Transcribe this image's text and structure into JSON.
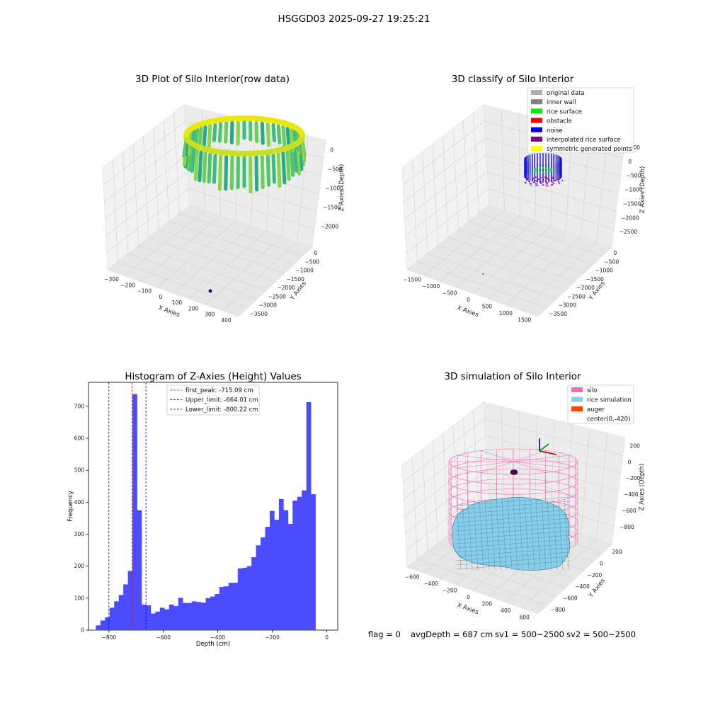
{
  "suptitle": "HSGGD03 2025-09-27 19:25:21",
  "footer": {
    "flag": "flag = 0",
    "avg": "avgDepth = 687 cm",
    "sv1": "sv1 = 500~2500",
    "sv2": "sv2 = 500~2500"
  },
  "colors": {
    "hist_bar": "#4b4bff",
    "first_peak": "#ff0000",
    "limits": "#0000cc",
    "silo": "#ff69b4",
    "rice": "#87ceeb",
    "auger": "#ff4500",
    "pane": "#f2f2f2",
    "grid": "#d0d0d0"
  },
  "panels": {
    "raw": {
      "title": "3D Plot of Silo Interior(row data)",
      "xlabel": "X Axies",
      "ylabel": "Y Axies",
      "zlabel": "Z Axies (Depth)",
      "xticks": [
        "−300",
        "−200",
        "−100",
        "0",
        "100",
        "200",
        "300",
        "400"
      ],
      "yticks": [
        "0",
        "−500",
        "−1000",
        "−1500",
        "−2000",
        "−2500",
        "−3000",
        "−3500"
      ],
      "zticks": [
        "0",
        "−500",
        "−1000",
        "−1500",
        "−2000"
      ]
    },
    "classify": {
      "title": "3D classify of Silo Interior",
      "xlabel": "X Axies",
      "ylabel": "Y Axies",
      "zlabel": "Z Axies (Depth)",
      "xticks": [
        "−1500",
        "−1000",
        "−500",
        "0",
        "500",
        "1000",
        "1500"
      ],
      "yticks": [
        "0",
        "−500",
        "−1000",
        "−1500",
        "−2000",
        "−2500",
        "−3000",
        "−3500"
      ],
      "zticks": [
        "500",
        "0",
        "−500",
        "−1000",
        "−1500",
        "−2000",
        "−2500"
      ],
      "legend": [
        {
          "label": "original data",
          "color": "#b0b0b0"
        },
        {
          "label": "inner wall",
          "color": "#808080"
        },
        {
          "label": "rice surface",
          "color": "#00ee00"
        },
        {
          "label": "obstacle",
          "color": "#ff0000"
        },
        {
          "label": "noise",
          "color": "#0000dd"
        },
        {
          "label": "interpolated rice surface",
          "color": "#800080"
        },
        {
          "label": "symmetric generated points",
          "color": "#ffff00"
        }
      ]
    },
    "simulation": {
      "title": "3D simulation of Silo Interior",
      "xlabel": "X Axies",
      "ylabel": "Y Axies",
      "zlabel": "Z Axies (Depth)",
      "xticks": [
        "−600",
        "−400",
        "−200",
        "0",
        "200",
        "400",
        "600"
      ],
      "yticks": [
        "200",
        "0",
        "−200",
        "−400",
        "−600",
        "−800"
      ],
      "zticks": [
        "200",
        "0",
        "−200",
        "−400",
        "−600",
        "−800"
      ],
      "legend": [
        {
          "label": "silo",
          "color": "#ff69b4"
        },
        {
          "label": "rice simulation",
          "color": "#87ceeb"
        },
        {
          "label": "auger",
          "color": "#ff4500"
        },
        {
          "label": "center(0,-420)",
          "color": ""
        }
      ]
    }
  },
  "chart_data": {
    "type": "bar",
    "title": "Histogram of Z-Axies (Height) Values",
    "xlabel": "Depth (cm)",
    "ylabel": "Frequency",
    "xlim": [
      -875,
      40
    ],
    "ylim": [
      0,
      775
    ],
    "xticks": [
      -800,
      -600,
      -400,
      -200,
      0
    ],
    "xtick_labels": [
      "−800",
      "−600",
      "−400",
      "−200",
      "0"
    ],
    "yticks": [
      0,
      100,
      200,
      300,
      400,
      500,
      600,
      700
    ],
    "bin_start": -848,
    "bin_width": 16.8,
    "counts": [
      15,
      30,
      40,
      70,
      90,
      110,
      143,
      185,
      738,
      375,
      80,
      78,
      52,
      58,
      70,
      65,
      80,
      75,
      101,
      85,
      85,
      90,
      88,
      86,
      100,
      105,
      113,
      135,
      137,
      148,
      148,
      193,
      195,
      200,
      228,
      265,
      290,
      323,
      373,
      345,
      410,
      375,
      332,
      405,
      417,
      437,
      713,
      425
    ],
    "vlines": [
      {
        "label": "first_peak: -715.09 cm",
        "x": -715.09,
        "color": "#ff0000"
      },
      {
        "label": "Upper_limit: -664.01 cm",
        "x": -664.01,
        "color": "#0000cc"
      },
      {
        "label": "Lower_limit: -800.22 cm",
        "x": -800.22,
        "color": "#0000cc"
      }
    ],
    "legend_position": "upper center"
  }
}
